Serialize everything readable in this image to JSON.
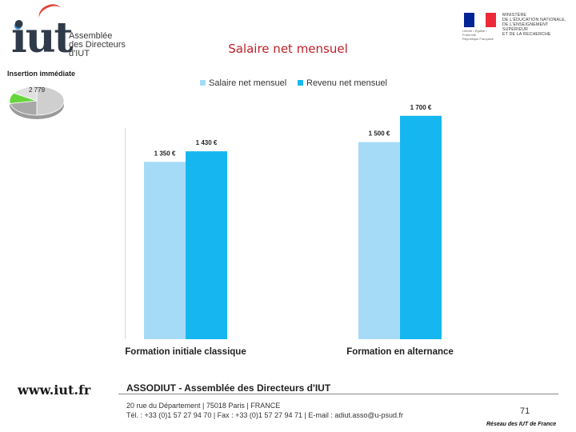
{
  "header": {
    "logo": {
      "mark": "iut",
      "lines": [
        "Assemblée",
        "des Directeurs",
        "d'IUT"
      ]
    },
    "ministry": {
      "flag_colors": [
        "#002395",
        "#ffffff",
        "#ed2939"
      ],
      "flag_caption": [
        "Liberté • Égalité • Fraternité",
        "République Française"
      ],
      "lines": [
        "MINISTÈRE",
        "DE L'ÉDUCATION NATIONALE,",
        "DE L'ENSEIGNEMENT SUPÉRIEUR",
        "ET DE LA RECHERCHE"
      ]
    },
    "title": "Salaire net mensuel"
  },
  "sidebar": {
    "label": "Insertion immédiate",
    "pie_value": "2 779",
    "pie_colors": [
      "#cfcfcf",
      "#a8a8a8",
      "#66d63a",
      "#e0e0e0"
    ],
    "pie_fractions": [
      0.5,
      0.22,
      0.12,
      0.16
    ]
  },
  "chart_data": {
    "type": "bar",
    "title": "",
    "categories": [
      "Formation initiale classique",
      "Formation en alternance"
    ],
    "series": [
      {
        "name": "Salaire net mensuel",
        "color": "#a6dbf7",
        "values": [
          1350,
          1500
        ],
        "labels": [
          "1 350 €",
          "1 500 €"
        ]
      },
      {
        "name": "Revenu net mensuel",
        "color": "#16b7f0",
        "values": [
          1430,
          1700
        ],
        "labels": [
          "1 430 €",
          "1 700 €"
        ]
      }
    ],
    "ylim": [
      0,
      1790
    ],
    "legend_position": "top",
    "grid": false
  },
  "footer": {
    "site": "www.iut.fr",
    "org": "ASSODIUT - Assemblée des Directeurs d'IUT",
    "address_line1": "20 rue du Département | 75018 Paris | FRANCE",
    "address_line2": "Tél. : +33 (0)1 57 27 94 70 | Fax : +33 (0)1 57 27 94 71 | E-mail : adiut.asso@u-psud.fr",
    "page_number": "71",
    "network": "Réseau des IUT de France"
  }
}
